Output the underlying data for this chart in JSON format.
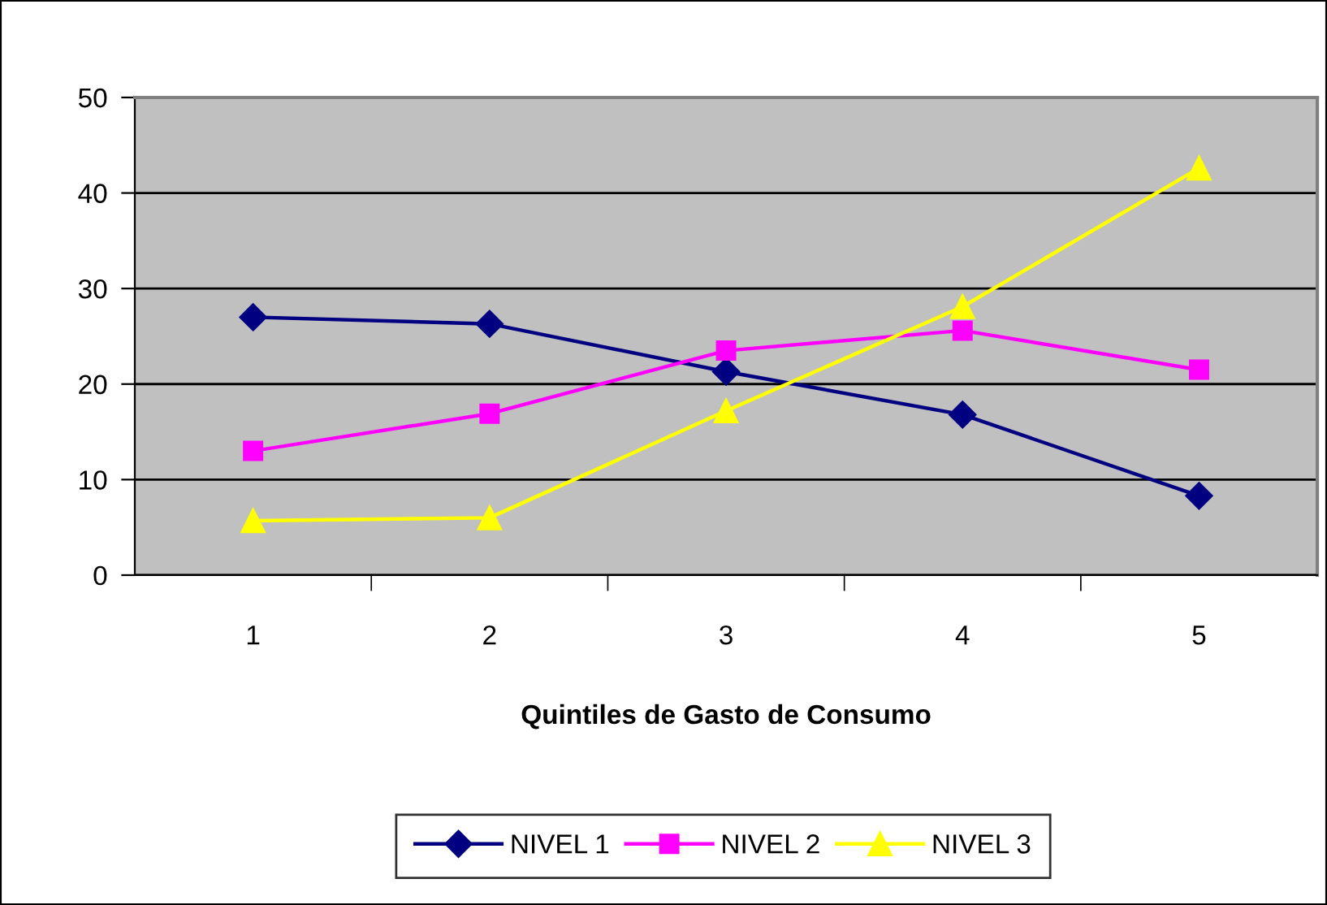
{
  "chart_data": {
    "type": "line",
    "xlabel": "Quintiles de Gasto de Consumo",
    "categories": [
      "1",
      "2",
      "3",
      "4",
      "5"
    ],
    "ylim": [
      0,
      50
    ],
    "yticks": [
      0,
      10,
      20,
      30,
      40,
      50
    ],
    "grid": "y",
    "legend": "bottom",
    "line_style": "solid",
    "series": [
      {
        "name": "NIVEL 1",
        "color": "#000080",
        "marker": "diamond",
        "values": [
          27.0,
          26.3,
          21.3,
          16.8,
          8.3
        ]
      },
      {
        "name": "NIVEL 2",
        "color": "#ff00ff",
        "marker": "square",
        "values": [
          13.0,
          16.9,
          23.5,
          25.6,
          21.5
        ]
      },
      {
        "name": "NIVEL 3",
        "color": "#ffff00",
        "marker": "triangle",
        "values": [
          5.7,
          6.0,
          17.2,
          28.1,
          42.6
        ]
      }
    ]
  }
}
